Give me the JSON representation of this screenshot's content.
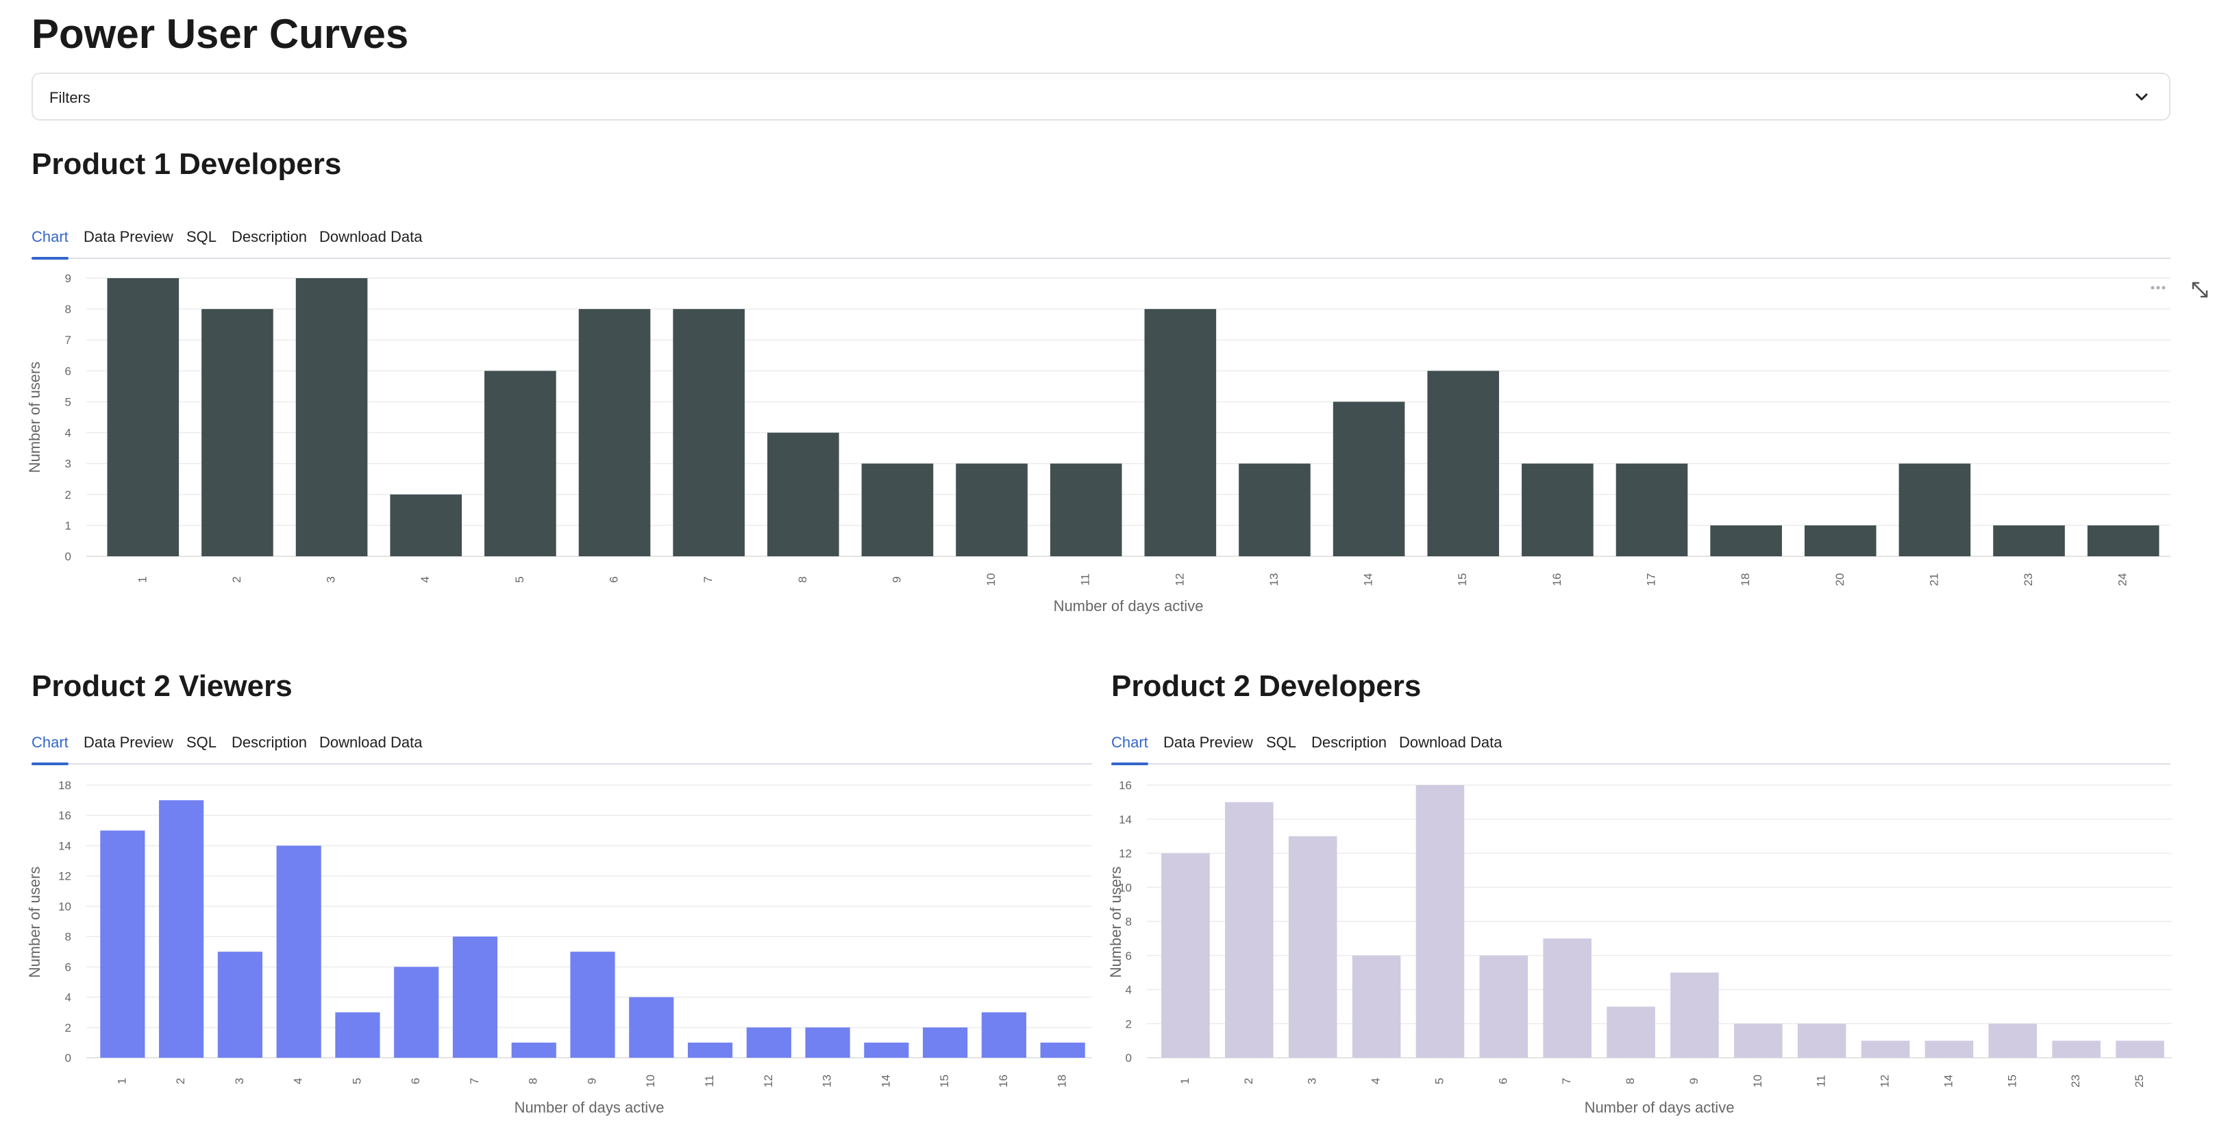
{
  "page": {
    "title": "Power User Curves"
  },
  "filters": {
    "label": "Filters"
  },
  "tabs_default": [
    "Chart",
    "Data Preview",
    "SQL",
    "Description",
    "Download Data"
  ],
  "sections": [
    {
      "title": "Product 1 Developers",
      "tabs": [
        "Chart",
        "Data Preview",
        "SQL",
        "Description",
        "Download Data"
      ],
      "active_tab": "Chart"
    },
    {
      "title": "Product 2 Viewers",
      "tabs": [
        "Chart",
        "Data Preview",
        "SQL",
        "Description",
        "Download Data"
      ],
      "active_tab": "Chart"
    },
    {
      "title": "Product 2 Developers",
      "tabs": [
        "Chart",
        "Data Preview",
        "SQL",
        "Description",
        "Download Data"
      ],
      "active_tab": "Chart"
    }
  ],
  "icons": {
    "filters_toggle": "chevron-down-icon",
    "chart_menu": "more-horizontal-icon",
    "chart_expand": "expand-icon"
  },
  "chart_data": [
    {
      "type": "bar",
      "title": "Product 1 Developers",
      "xlabel": "Number of days active",
      "ylabel": "Number of users",
      "categories": [
        "1",
        "2",
        "3",
        "4",
        "5",
        "6",
        "7",
        "8",
        "9",
        "10",
        "11",
        "12",
        "13",
        "14",
        "15",
        "16",
        "17",
        "18",
        "20",
        "21",
        "23",
        "24"
      ],
      "values": [
        9,
        8,
        9,
        2,
        6,
        8,
        8,
        4,
        3,
        3,
        3,
        8,
        3,
        5,
        6,
        3,
        3,
        1,
        1,
        3,
        1,
        1
      ],
      "ylim": [
        0,
        9
      ],
      "yticks": [
        0,
        1,
        2,
        3,
        4,
        5,
        6,
        7,
        8,
        9
      ],
      "color": "#414f51",
      "grid": true
    },
    {
      "type": "bar",
      "title": "Product 2 Viewers",
      "xlabel": "Number of days active",
      "ylabel": "Number of users",
      "categories": [
        "1",
        "2",
        "3",
        "4",
        "5",
        "6",
        "7",
        "8",
        "9",
        "10",
        "11",
        "12",
        "13",
        "14",
        "15",
        "16",
        "18"
      ],
      "values": [
        15,
        17,
        7,
        14,
        3,
        6,
        8,
        1,
        7,
        4,
        1,
        2,
        2,
        1,
        2,
        3,
        1
      ],
      "ylim": [
        0,
        18
      ],
      "yticks": [
        0,
        2,
        4,
        6,
        8,
        10,
        12,
        14,
        16,
        18
      ],
      "color": "#7181f2",
      "grid": true
    },
    {
      "type": "bar",
      "title": "Product 2 Developers",
      "xlabel": "Number of days active",
      "ylabel": "Number of users",
      "categories": [
        "1",
        "2",
        "3",
        "4",
        "5",
        "6",
        "7",
        "8",
        "9",
        "10",
        "11",
        "12",
        "14",
        "15",
        "23",
        "25"
      ],
      "values": [
        12,
        15,
        13,
        6,
        16,
        6,
        7,
        3,
        5,
        2,
        2,
        1,
        1,
        2,
        1,
        1
      ],
      "ylim": [
        0,
        16
      ],
      "yticks": [
        0,
        2,
        4,
        6,
        8,
        10,
        12,
        14,
        16
      ],
      "color": "#d0cbe1",
      "grid": true
    }
  ]
}
